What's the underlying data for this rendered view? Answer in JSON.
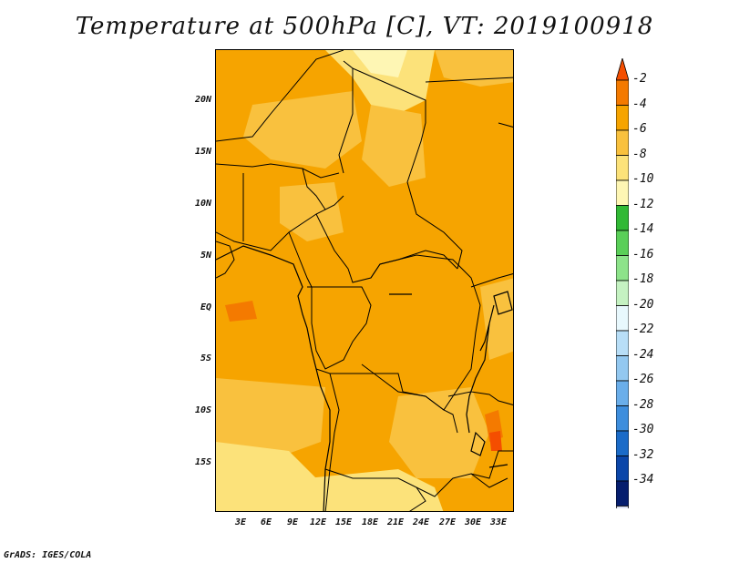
{
  "title": "Temperature at 500hPa [C], VT: 2019100918",
  "credit": "GrADS: IGES/COLA",
  "map": {
    "lat_labels": [
      "20N",
      "15N",
      "10N",
      "5N",
      "EQ",
      "5S",
      "10S",
      "15S"
    ],
    "lon_labels": [
      "3E",
      "6E",
      "9E",
      "12E",
      "15E",
      "18E",
      "21E",
      "24E",
      "27E",
      "30E",
      "33E"
    ],
    "dominant_range": "-6 to -4",
    "colors": {
      "lvl_-4_-2": "#f47a00",
      "lvl_-6_-4": "#f6a400",
      "lvl_-8_-6": "#f9c13e",
      "lvl_-10_-8": "#fce27a",
      "lvl_-12_-10": "#fef6b4"
    }
  },
  "colorbar": {
    "labels": [
      "-2",
      "-4",
      "-6",
      "-8",
      "-10",
      "-12",
      "-14",
      "-16",
      "-18",
      "-20",
      "-22",
      "-24",
      "-26",
      "-28",
      "-30",
      "-32",
      "-34"
    ],
    "colors": [
      "#f44e00",
      "#f47a00",
      "#f6a400",
      "#f9c13e",
      "#fce27a",
      "#fef6b4",
      "#31b935",
      "#5acf58",
      "#8de38a",
      "#c5f2c2",
      "#e8f8fd",
      "#b8def7",
      "#93c8f0",
      "#6aaeea",
      "#3e8edd",
      "#1b6bc8",
      "#0b46a9",
      "#061e6e",
      "#dde2f5"
    ]
  }
}
